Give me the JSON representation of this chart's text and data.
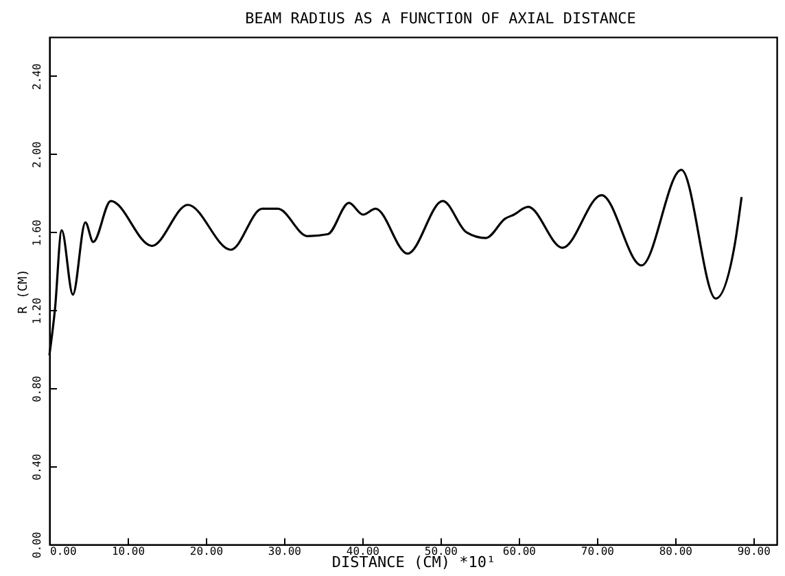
{
  "chart_data": {
    "type": "line",
    "title": "BEAM RADIUS AS A FUNCTION OF AXIAL DISTANCE",
    "xlabel": "DISTANCE (CM) *10¹",
    "ylabel": "R (CM)",
    "x": [
      0,
      0.7,
      1.57,
      3.0,
      4.6,
      5.6,
      7.85,
      13.1,
      17.7,
      23.2,
      27.2,
      29.2,
      33.0,
      35.6,
      38.3,
      40.1,
      41.7,
      45.8,
      50.3,
      53.3,
      55.8,
      58.3,
      59.4,
      61.2,
      65.6,
      70.6,
      75.7,
      80.8,
      85.2,
      87.6,
      88.5
    ],
    "series": [
      {
        "color": "#000000",
        "values": [
          0.97,
          1.2,
          1.61,
          1.28,
          1.65,
          1.55,
          1.76,
          1.53,
          1.74,
          1.51,
          1.72,
          1.72,
          1.58,
          1.59,
          1.75,
          1.69,
          1.72,
          1.49,
          1.76,
          1.6,
          1.57,
          1.67,
          1.69,
          1.73,
          1.52,
          1.79,
          1.43,
          1.92,
          1.26,
          1.53,
          1.78
        ]
      }
    ],
    "xlim": [
      0,
      93
    ],
    "ylim": [
      0,
      2.6
    ],
    "xticks": [
      {
        "value": 0,
        "label": "0.00"
      },
      {
        "value": 10,
        "label": "10.00"
      },
      {
        "value": 20,
        "label": "20.00"
      },
      {
        "value": 30,
        "label": "30.00"
      },
      {
        "value": 40,
        "label": "40.00"
      },
      {
        "value": 50,
        "label": "50.00"
      },
      {
        "value": 60,
        "label": "60.00"
      },
      {
        "value": 70,
        "label": "70.00"
      },
      {
        "value": 80,
        "label": "80.00"
      },
      {
        "value": 90,
        "label": "90.00"
      }
    ],
    "yticks": [
      {
        "value": 0,
        "label": "0.00"
      },
      {
        "value": 0.4,
        "label": "0.40"
      },
      {
        "value": 0.8,
        "label": "0.80"
      },
      {
        "value": 1.2,
        "label": "1.20"
      },
      {
        "value": 1.6,
        "label": "1.60"
      },
      {
        "value": 2.0,
        "label": "2.00"
      },
      {
        "value": 2.4,
        "label": "2.40"
      }
    ],
    "grid": false,
    "marker": "none",
    "line_style": "solid"
  }
}
